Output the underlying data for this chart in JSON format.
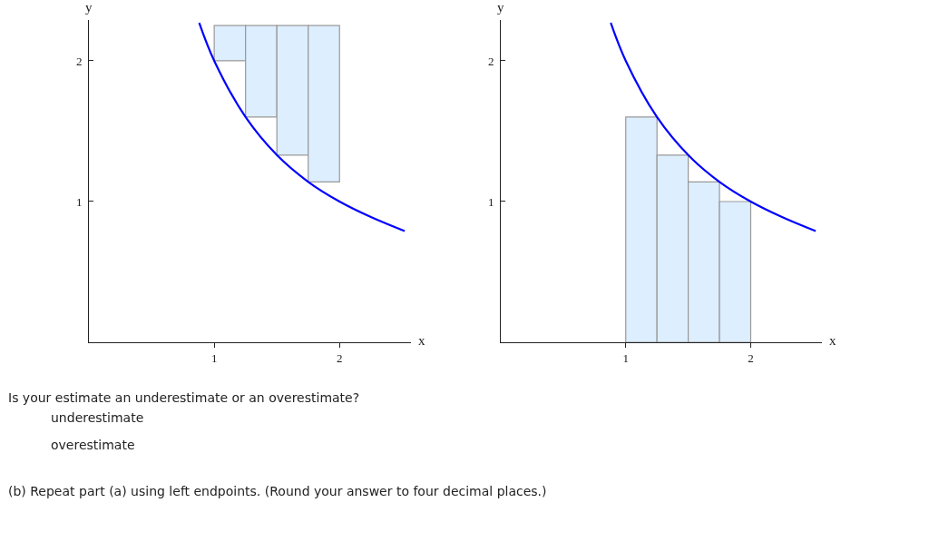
{
  "chart_data": [
    {
      "type": "bar",
      "xlabel": "x",
      "ylabel": "y",
      "xlim": [
        0,
        2.57
      ],
      "ylim": [
        0,
        2.29
      ],
      "xticks": [
        1,
        2
      ],
      "yticks": [
        1,
        2
      ],
      "series": [
        {
          "type": "bar",
          "color": "#ddeeff",
          "x": [
            1.125,
            1.375,
            1.625,
            1.875
          ],
          "base": [
            2.0,
            1.6,
            1.33,
            1.14
          ],
          "values": [
            0.25,
            0.65,
            0.92,
            1.11
          ]
        },
        {
          "type": "line",
          "color": "#0000ff",
          "x": [
            0.88,
            1.0,
            1.25,
            1.5,
            1.75,
            2.0,
            2.25,
            2.52
          ],
          "values": [
            2.27,
            2.0,
            1.6,
            1.33,
            1.14,
            1.0,
            0.89,
            0.79
          ]
        }
      ]
    },
    {
      "type": "bar",
      "xlabel": "x",
      "ylabel": "y",
      "xlim": [
        0,
        2.57
      ],
      "ylim": [
        0,
        2.29
      ],
      "xticks": [
        1,
        2
      ],
      "yticks": [
        1,
        2
      ],
      "series": [
        {
          "type": "bar",
          "color": "#ddeeff",
          "x": [
            1.125,
            1.375,
            1.625,
            1.875
          ],
          "values": [
            1.6,
            1.33,
            1.14,
            1.0
          ]
        },
        {
          "type": "line",
          "color": "#0000ff",
          "x": [
            0.88,
            1.0,
            1.25,
            1.5,
            1.75,
            2.0,
            2.25,
            2.52
          ],
          "values": [
            2.27,
            2.0,
            1.6,
            1.33,
            1.14,
            1.0,
            0.89,
            0.79
          ]
        }
      ]
    },
    {
      "type": "other",
      "annotations": [
        "Is your estimate an underestimate or an overestimate?",
        "underestimate",
        "overestimate",
        "(b) Repeat part (a) using left endpoints. (Round your answer to four decimal places.)"
      ]
    }
  ]
}
